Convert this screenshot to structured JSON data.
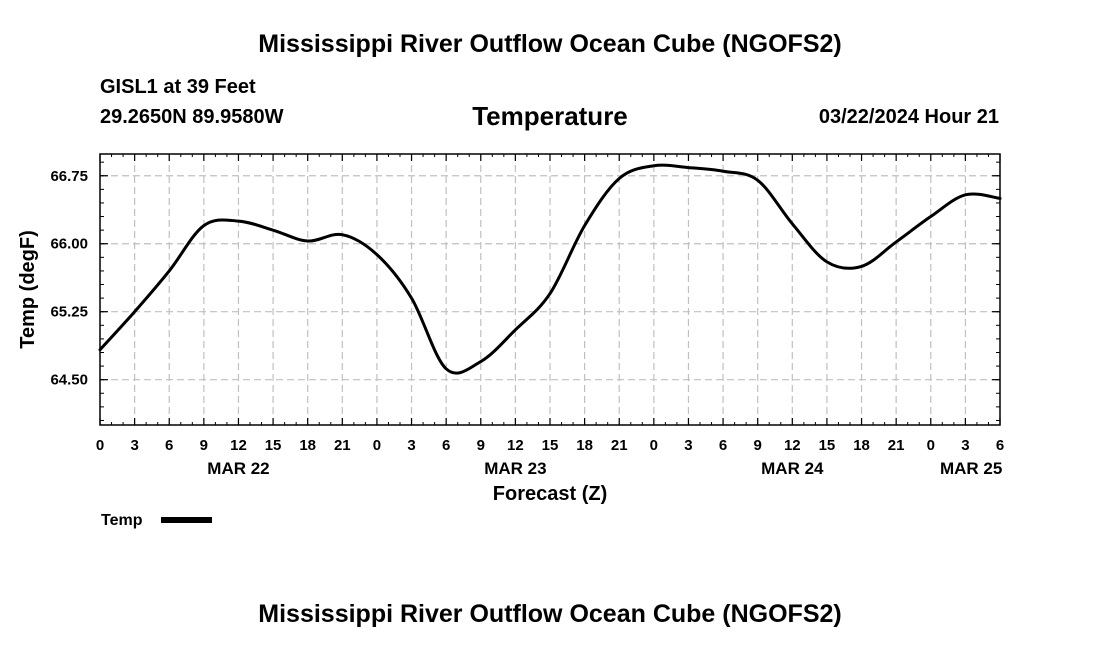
{
  "header": {
    "title": "Mississippi River Outflow Ocean Cube (NGOFS2)",
    "station": "GISL1 at 39 Feet",
    "coordinates": "29.2650N  89.9580W",
    "chart_title": "Temperature",
    "datetime": "03/22/2024 Hour 21"
  },
  "footer": {
    "title": "Mississippi River Outflow Ocean Cube (NGOFS2)"
  },
  "chart_data": {
    "type": "line",
    "title": "Temperature",
    "xlabel": "Forecast (Z)",
    "ylabel": "Temp (degF)",
    "xlim": [
      0,
      78
    ],
    "ylim": [
      64.0,
      66.99
    ],
    "y_ticks": [
      64.5,
      65.25,
      66.0,
      66.75
    ],
    "y_tick_labels": [
      "64.50",
      "65.25",
      "66.00",
      "66.75"
    ],
    "x_ticks": [
      0,
      3,
      6,
      9,
      12,
      15,
      18,
      21,
      24,
      27,
      30,
      33,
      36,
      39,
      42,
      45,
      48,
      51,
      54,
      57,
      60,
      63,
      66,
      69,
      72,
      75,
      78
    ],
    "x_tick_labels": [
      "0",
      "3",
      "6",
      "9",
      "12",
      "15",
      "18",
      "21",
      "0",
      "3",
      "6",
      "9",
      "12",
      "15",
      "18",
      "21",
      "0",
      "3",
      "6",
      "9",
      "12",
      "15",
      "18",
      "21",
      "0",
      "3",
      "6"
    ],
    "day_labels": [
      {
        "x": 12,
        "label": "MAR 22"
      },
      {
        "x": 36,
        "label": "MAR 23"
      },
      {
        "x": 60,
        "label": "MAR 24"
      },
      {
        "x": 75.5,
        "label": "MAR 25"
      }
    ],
    "grid": true,
    "legend": "bottom-left",
    "series": [
      {
        "name": "Temp",
        "color": "#000000",
        "x": [
          0,
          3,
          6,
          9,
          12,
          15,
          18,
          21,
          24,
          27,
          30,
          33,
          36,
          39,
          42,
          45,
          48,
          51,
          54,
          57,
          60,
          63,
          66,
          69,
          72,
          75,
          78
        ],
        "values": [
          64.83,
          65.25,
          65.7,
          66.2,
          66.25,
          66.15,
          66.03,
          66.1,
          65.88,
          65.4,
          64.62,
          64.7,
          65.05,
          65.45,
          66.2,
          66.72,
          66.86,
          66.84,
          66.8,
          66.7,
          66.22,
          65.8,
          65.75,
          66.02,
          66.3,
          66.54,
          66.5
        ]
      }
    ]
  }
}
